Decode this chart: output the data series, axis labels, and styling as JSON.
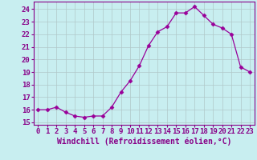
{
  "x": [
    0,
    1,
    2,
    3,
    4,
    5,
    6,
    7,
    8,
    9,
    10,
    11,
    12,
    13,
    14,
    15,
    16,
    17,
    18,
    19,
    20,
    21,
    22,
    23
  ],
  "y": [
    16.0,
    16.0,
    16.2,
    15.8,
    15.5,
    15.4,
    15.5,
    15.5,
    16.2,
    17.4,
    18.3,
    19.5,
    21.1,
    22.2,
    22.6,
    23.7,
    23.7,
    24.2,
    23.5,
    22.8,
    22.5,
    22.0,
    19.4,
    19.0
  ],
  "line_color": "#990099",
  "marker": "D",
  "marker_size": 2.5,
  "bg_color": "#c8eef0",
  "grid_color": "#b0c8c8",
  "xlabel": "Windchill (Refroidissement éolien,°C)",
  "ylabel": "",
  "ylim": [
    14.8,
    24.6
  ],
  "xlim": [
    -0.5,
    23.5
  ],
  "yticks": [
    15,
    16,
    17,
    18,
    19,
    20,
    21,
    22,
    23,
    24
  ],
  "xticks": [
    0,
    1,
    2,
    3,
    4,
    5,
    6,
    7,
    8,
    9,
    10,
    11,
    12,
    13,
    14,
    15,
    16,
    17,
    18,
    19,
    20,
    21,
    22,
    23
  ],
  "label_color": "#880088",
  "tick_color": "#880088",
  "font_size": 6.5,
  "xlabel_fontsize": 7.0
}
